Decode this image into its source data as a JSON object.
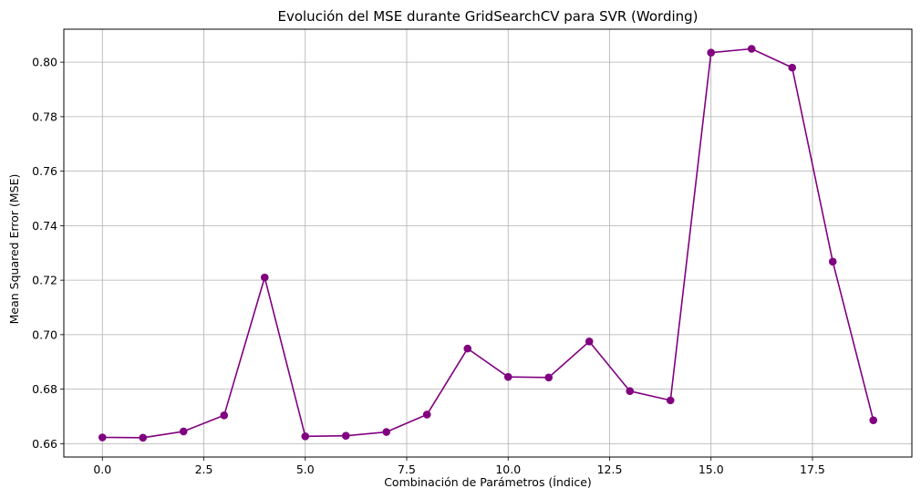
{
  "chart_data": {
    "type": "line",
    "title": "Evolución del MSE durante GridSearchCV para SVR (Wording)",
    "xlabel": "Combinación de Parámetros (Índice)",
    "ylabel": "Mean Squared Error (MSE)",
    "xlim": [
      -0.95,
      19.95
    ],
    "ylim": [
      0.6551,
      0.8121
    ],
    "grid": true,
    "x_ticks": [
      0.0,
      2.5,
      5.0,
      7.5,
      10.0,
      12.5,
      15.0,
      17.5
    ],
    "x_tick_labels": [
      "0.0",
      "2.5",
      "5.0",
      "7.5",
      "10.0",
      "12.5",
      "15.0",
      "17.5"
    ],
    "y_ticks": [
      0.66,
      0.68,
      0.7,
      0.72,
      0.74,
      0.76,
      0.78,
      0.8
    ],
    "y_tick_labels": [
      "0.66",
      "0.68",
      "0.70",
      "0.72",
      "0.74",
      "0.76",
      "0.78",
      "0.80"
    ],
    "series": [
      {
        "color": "#800080",
        "marker": "circle",
        "x": [
          0,
          1,
          2,
          3,
          4,
          5,
          6,
          7,
          8,
          9,
          10,
          11,
          12,
          13,
          14,
          15,
          16,
          17,
          18,
          19
        ],
        "values": [
          0.6623,
          0.6622,
          0.6645,
          0.6704,
          0.721,
          0.6627,
          0.6629,
          0.6643,
          0.6707,
          0.6949,
          0.6845,
          0.6843,
          0.6975,
          0.6793,
          0.6759,
          0.8035,
          0.8049,
          0.798,
          0.7268,
          0.6686
        ]
      }
    ]
  }
}
